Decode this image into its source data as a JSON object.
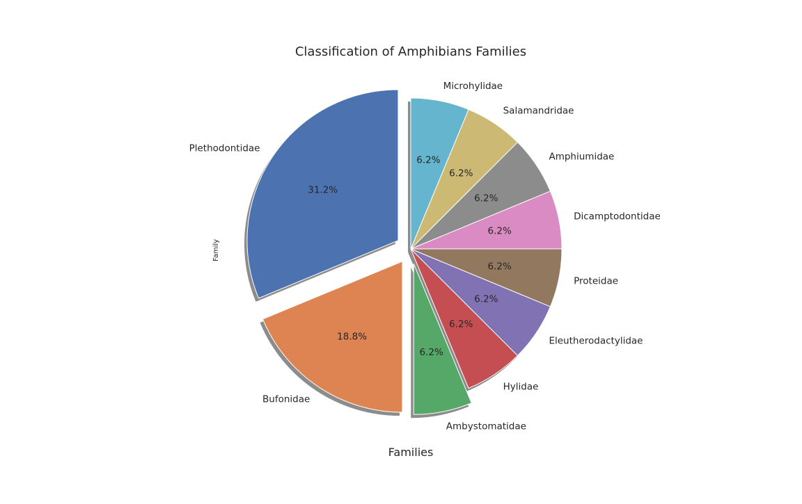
{
  "chart_data": {
    "type": "pie",
    "title": "Classification of Amphibians Families",
    "xlabel": "Families",
    "ylabel": "Family",
    "start_angle_deg": 90,
    "direction": "counterclockwise",
    "shadow": true,
    "slices": [
      {
        "label": "Plethodontidae",
        "pct_label": "31.2%",
        "value": 31.25,
        "color": "#4c72b0",
        "exploded": true
      },
      {
        "label": "Bufonidae",
        "pct_label": "18.8%",
        "value": 18.75,
        "color": "#dd8452",
        "exploded": true
      },
      {
        "label": "Ambystomatidae",
        "pct_label": "6.2%",
        "value": 6.25,
        "color": "#55a868",
        "exploded": true
      },
      {
        "label": "Hylidae",
        "pct_label": "6.2%",
        "value": 6.25,
        "color": "#c44e52",
        "exploded": false
      },
      {
        "label": "Eleutherodactylidae",
        "pct_label": "6.2%",
        "value": 6.25,
        "color": "#8172b3",
        "exploded": false
      },
      {
        "label": "Proteidae",
        "pct_label": "6.2%",
        "value": 6.25,
        "color": "#937860",
        "exploded": false
      },
      {
        "label": "Dicamptodontidae",
        "pct_label": "6.2%",
        "value": 6.25,
        "color": "#da8bc3",
        "exploded": false
      },
      {
        "label": "Amphiumidae",
        "pct_label": "6.2%",
        "value": 6.25,
        "color": "#8c8c8c",
        "exploded": false
      },
      {
        "label": "Salamandridae",
        "pct_label": "6.2%",
        "value": 6.25,
        "color": "#ccb974",
        "exploded": false
      },
      {
        "label": "Microhylidae",
        "pct_label": "6.2%",
        "value": 6.25,
        "color": "#64b5cd",
        "exploded": false
      }
    ]
  }
}
